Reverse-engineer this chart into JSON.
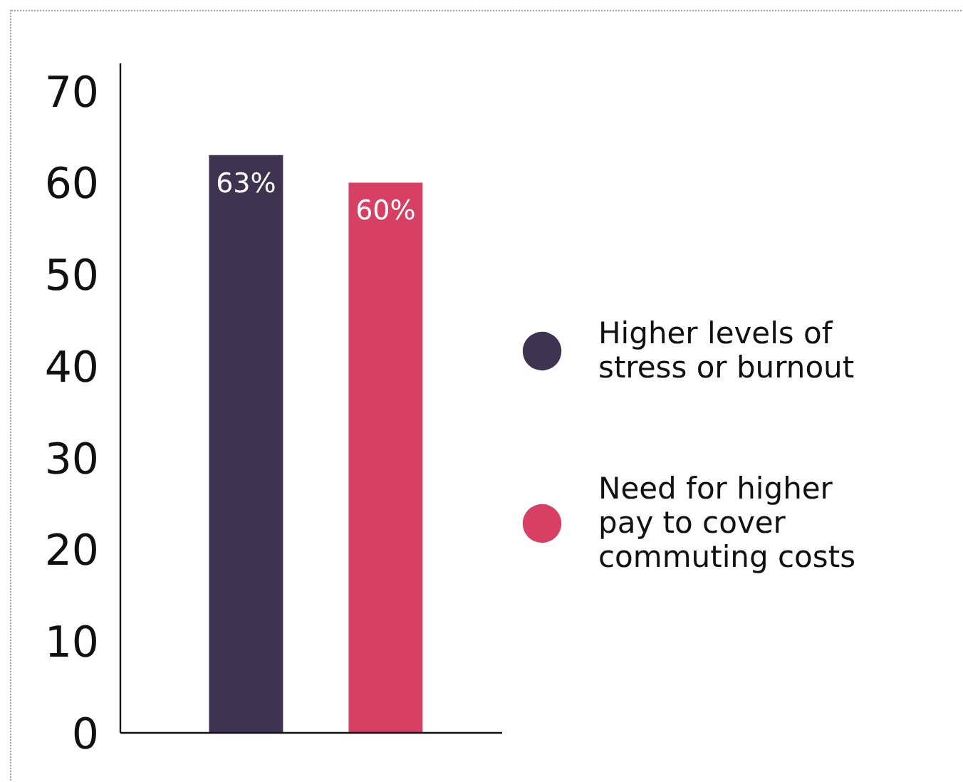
{
  "chart_data": {
    "type": "bar",
    "categories": [
      null,
      null
    ],
    "series": [
      {
        "name": "Higher levels of stress or burnout",
        "color": "#3e3350",
        "values": [
          63,
          null
        ],
        "value_labels": [
          "63%",
          null
        ]
      },
      {
        "name": "Need for higher pay to cover commuting costs",
        "color": "#d73f63",
        "values": [
          null,
          60
        ],
        "value_labels": [
          null,
          "60%"
        ]
      }
    ],
    "ylim": [
      0,
      73
    ],
    "yticks": [
      0,
      10,
      20,
      30,
      40,
      50,
      60,
      70
    ],
    "grid": false,
    "legend": "right"
  }
}
